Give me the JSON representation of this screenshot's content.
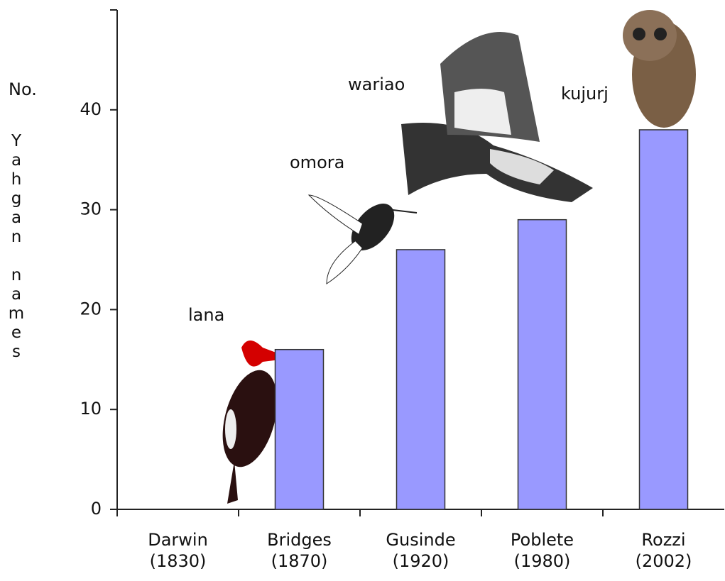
{
  "chart_data": {
    "type": "bar",
    "ylabel": [
      "No.",
      "Yahgan names"
    ],
    "categories": [
      "Darwin (1830)",
      "Bridges (1870)",
      "Gusinde (1920)",
      "Poblete (1980)",
      "Rozzi (2002)"
    ],
    "values": [
      0,
      16,
      26,
      29,
      38
    ],
    "color": "#9999ff",
    "ylim": [
      0,
      50
    ],
    "yticks": [
      0,
      10,
      20,
      30,
      40
    ],
    "annotations": [
      "lana",
      "omora",
      "wariao",
      "kujurj"
    ]
  }
}
